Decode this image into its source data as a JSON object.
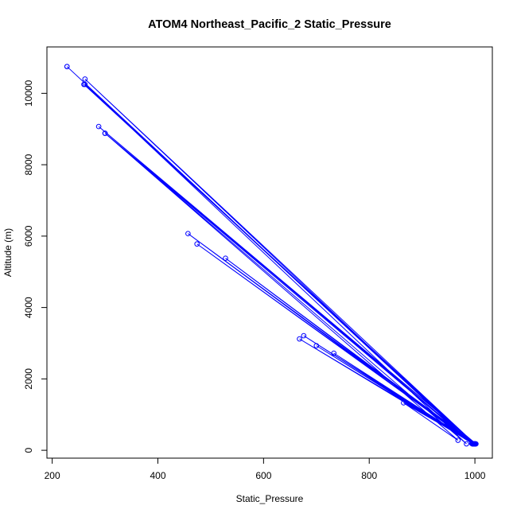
{
  "chart_data": {
    "type": "line",
    "title": "ATOM4 Northeast_Pacific_2 Static_Pressure",
    "xlabel": "Static_Pressure",
    "ylabel": "Altitude (m)",
    "xlim": [
      190,
      1033
    ],
    "ylim": [
      -220,
      11300
    ],
    "xticks": [
      200,
      400,
      600,
      800,
      1000
    ],
    "yticks": [
      0,
      2000,
      4000,
      6000,
      8000,
      10000
    ],
    "color": "#0000ff",
    "marker": "open-circle",
    "series": [
      {
        "x": [
          228,
          995,
          262,
          1000,
          260,
          998,
          288,
          1002,
          300,
          996,
          457,
          1000,
          474,
          998,
          528,
          1001,
          668,
          997,
          676,
          999,
          700,
          996,
          733,
          1000,
          865,
          968,
          300,
          984,
          262,
          994,
          228
        ],
        "y": [
          10750,
          180,
          10400,
          180,
          10250,
          180,
          9070,
          180,
          8880,
          180,
          6070,
          180,
          5780,
          180,
          5380,
          180,
          3120,
          180,
          3210,
          180,
          2930,
          180,
          2720,
          180,
          1330,
          280,
          8880,
          180,
          10250,
          190,
          10750
        ]
      }
    ]
  }
}
